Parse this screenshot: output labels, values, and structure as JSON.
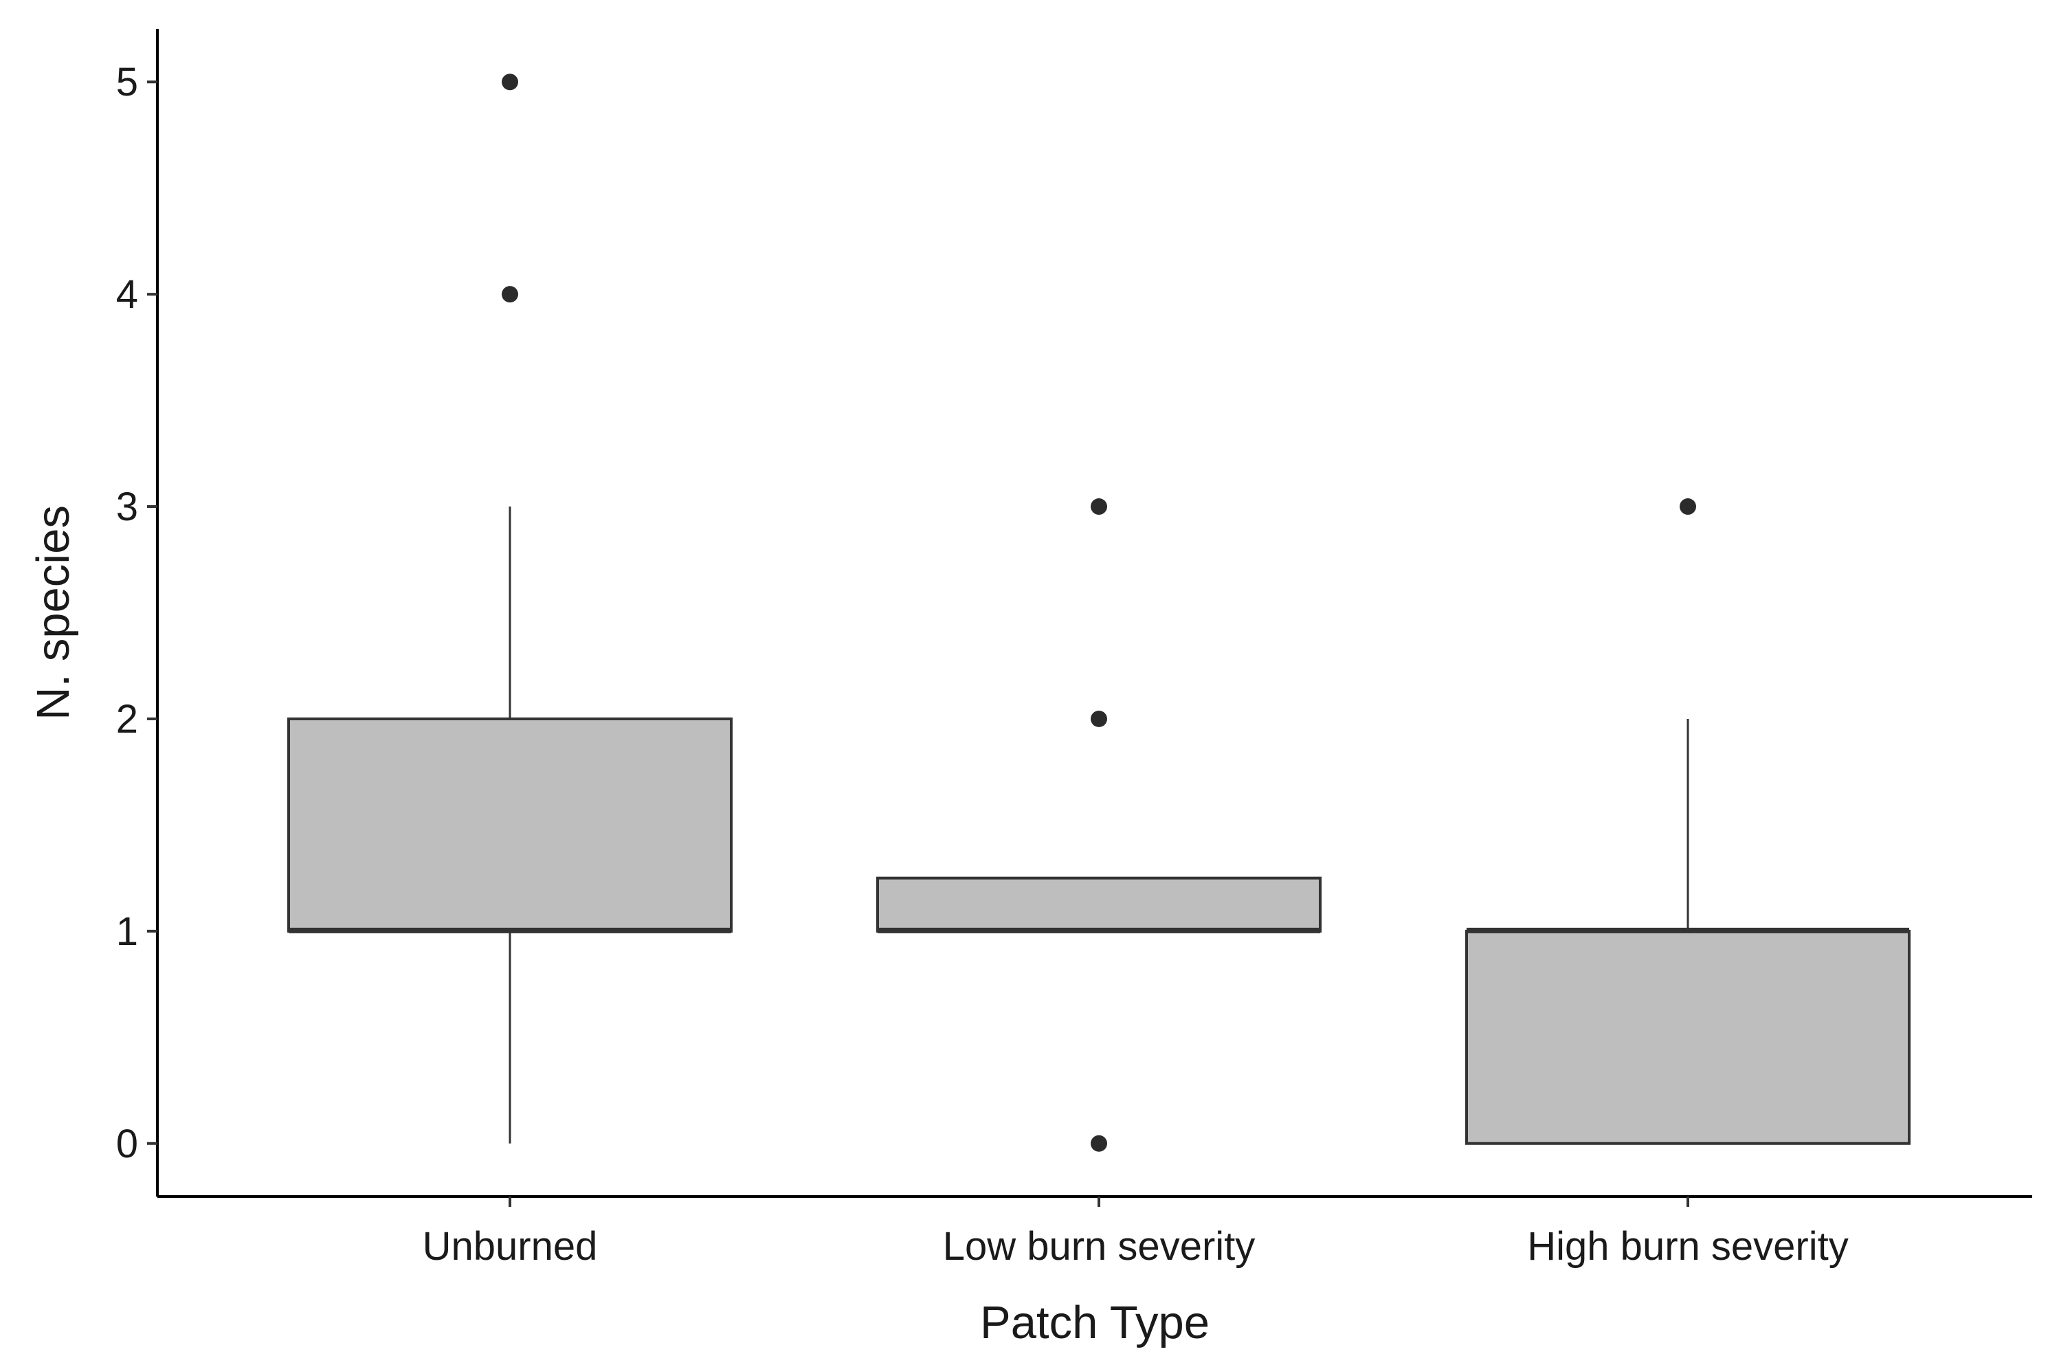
{
  "chart_data": {
    "type": "boxplot",
    "xlabel": "Patch Type",
    "ylabel": "N. species",
    "ylim": [
      -0.25,
      5.25
    ],
    "y_ticks": [
      0,
      1,
      2,
      3,
      4,
      5
    ],
    "y_tick_labels": [
      "0",
      "1",
      "2",
      "3",
      "4",
      "5"
    ],
    "categories": [
      "Unburned",
      "Low burn severity",
      "High burn severity"
    ],
    "boxes": [
      {
        "category": "Unburned",
        "whisker_low": 0,
        "q1": 1,
        "median": 1,
        "q3": 2,
        "whisker_high": 3,
        "outliers": [
          4,
          5
        ]
      },
      {
        "category": "Low burn severity",
        "whisker_low": 1,
        "q1": 1,
        "median": 1,
        "q3": 1.25,
        "whisker_high": 1.25,
        "outliers": [
          0,
          2,
          3
        ]
      },
      {
        "category": "High burn severity",
        "whisker_low": 0,
        "q1": 0,
        "median": 1,
        "q3": 1,
        "whisker_high": 2,
        "outliers": [
          3
        ]
      }
    ],
    "box_fill": "#bebebe",
    "line_color": "#333333",
    "point_color": "#2b2b2b",
    "grid": false,
    "legend": "none"
  }
}
